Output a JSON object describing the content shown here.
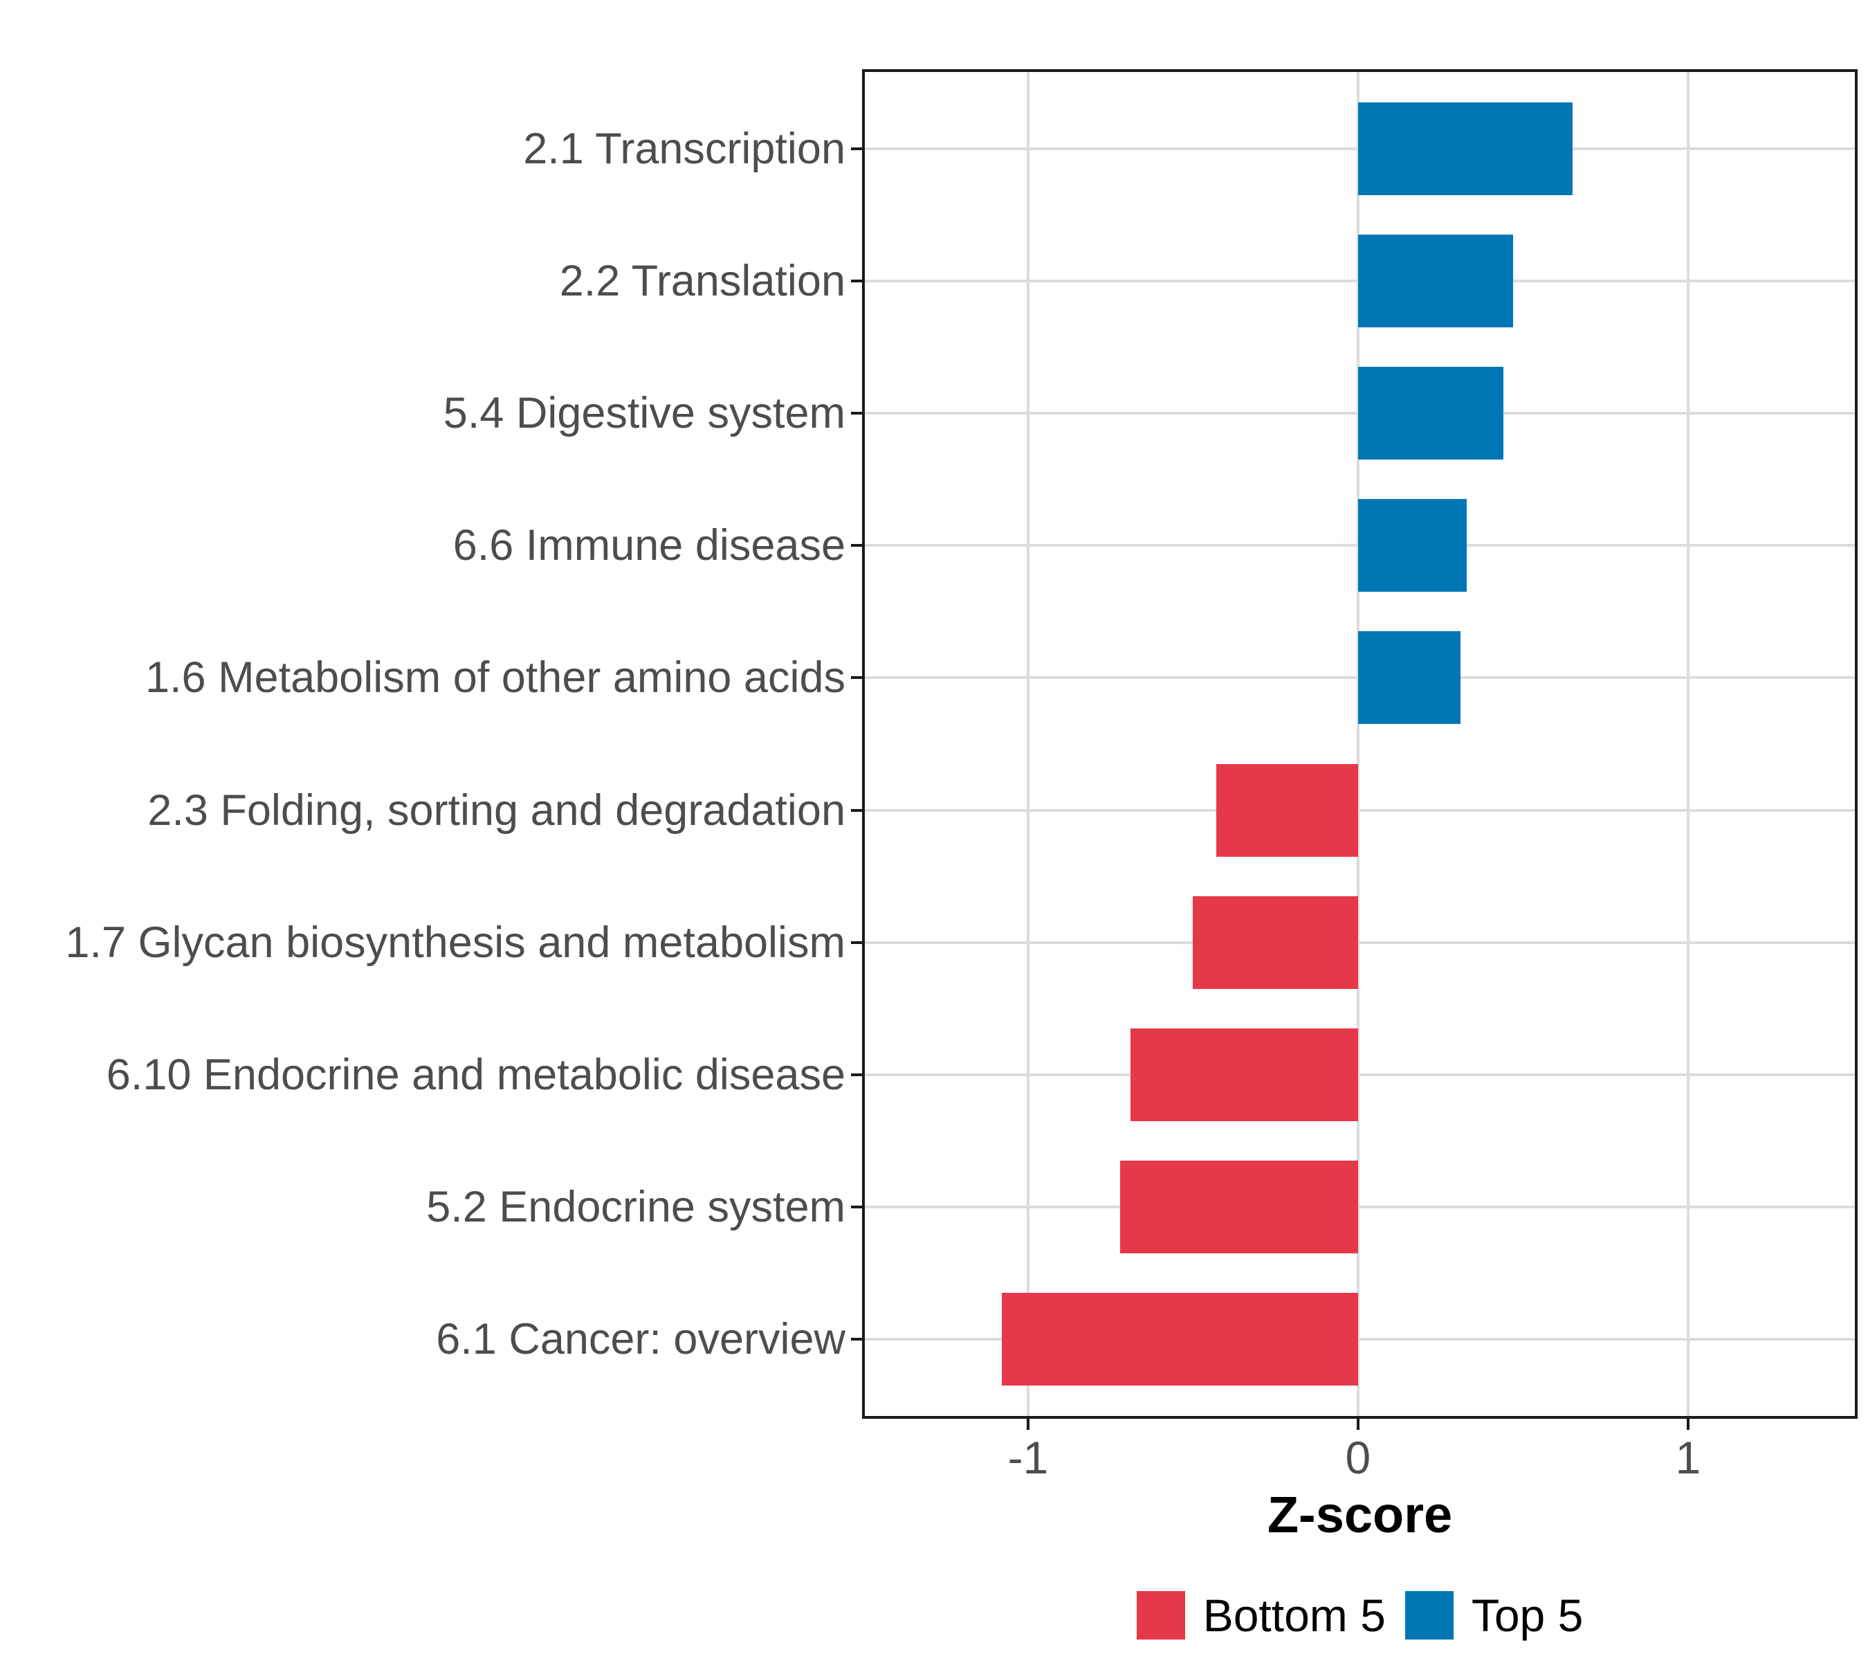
{
  "chart_data": {
    "type": "bar",
    "orientation": "horizontal",
    "title": "",
    "xlabel": "Z-score",
    "ylabel": "",
    "categories": [
      "2.1 Transcription",
      "2.2 Translation",
      "5.4 Digestive system",
      "6.6 Immune disease",
      "1.6 Metabolism of other amino acids",
      "2.3 Folding, sorting and degradation",
      "1.7 Glycan biosynthesis and metabolism",
      "6.10 Endocrine and metabolic disease",
      "5.2 Endocrine system",
      "6.1 Cancer: overview"
    ],
    "values": [
      0.65,
      0.47,
      0.44,
      0.33,
      0.31,
      -0.43,
      -0.5,
      -0.69,
      -0.72,
      -1.08
    ],
    "groups": [
      "Top 5",
      "Top 5",
      "Top 5",
      "Top 5",
      "Top 5",
      "Bottom 5",
      "Bottom 5",
      "Bottom 5",
      "Bottom 5",
      "Bottom 5"
    ],
    "legend": [
      {
        "label": "Bottom 5",
        "color": "#E5394A"
      },
      {
        "label": "Top 5",
        "color": "#0077B4"
      }
    ],
    "legend_position": "bottom",
    "x_ticks": [
      {
        "label": "-1",
        "value": -1
      },
      {
        "label": "0",
        "value": 0
      },
      {
        "label": "1",
        "value": 1
      }
    ],
    "xlim": [
      -1.503,
      1.514
    ],
    "grid": true,
    "bar_width_fraction": 0.7,
    "style": {
      "background": "#FFFFFF",
      "grid_color": "#DCDCDC",
      "border_color": "#1A1A1A",
      "axis_text_color": "#4D4D4D",
      "axis_title_color": "#000000"
    }
  }
}
